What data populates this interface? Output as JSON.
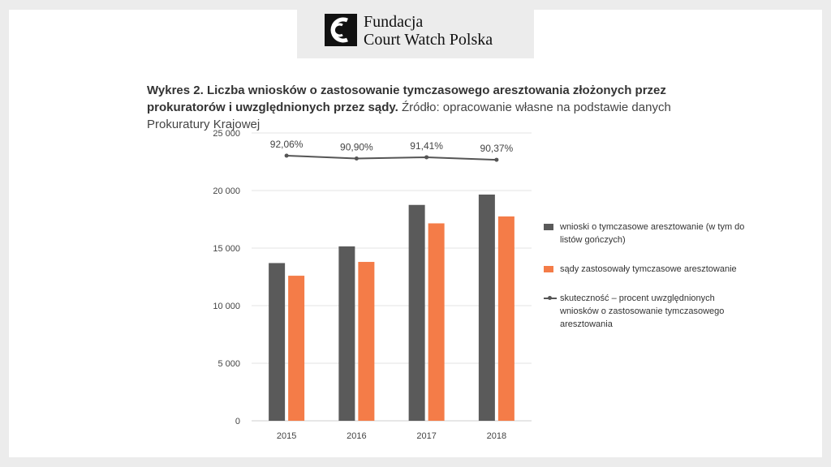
{
  "logo": {
    "line1": "Fundacja",
    "line2": "Court Watch Polska",
    "icon": "court-watch-logo-icon"
  },
  "caption": {
    "title_bold": "Wykres 2. Liczba wniosków o zastosowanie tymczasowego aresztowania złożonych przez prokuratorów i uwzględnionych przez sądy.",
    "source": "Źródło: opracowanie własne na podstawie danych Prokuratury Krajowej"
  },
  "colors": {
    "series1": "#5a5a5a",
    "series2": "#f47c48",
    "line": "#555555",
    "grid": "#e3e3e3"
  },
  "chart_data": {
    "type": "bar",
    "categories": [
      "2015",
      "2016",
      "2017",
      "2018"
    ],
    "series": [
      {
        "name": "wnioski o tymczasowe aresztowanie (w tym do listów gończych)",
        "values": [
          13700,
          15150,
          18750,
          19650
        ]
      },
      {
        "name": "sądy zastosowały tymczasowe aresztowanie",
        "values": [
          12600,
          13800,
          17150,
          17750
        ]
      }
    ],
    "line_series": {
      "name": "skuteczność – procent uwzględnionych wniosków o zastosowanie tymczasowego aresztowania",
      "values": [
        92.06,
        90.9,
        91.41,
        90.37
      ],
      "labels": [
        "92,06%",
        "90,90%",
        "91,41%",
        "90,37%"
      ]
    },
    "ylim": [
      0,
      25000
    ],
    "yticks": [
      0,
      5000,
      10000,
      15000,
      20000,
      25000
    ],
    "ytick_labels": [
      "0",
      "5 000",
      "10 000",
      "15 000",
      "20 000",
      "25 000"
    ],
    "grid": true,
    "legend": "right"
  }
}
